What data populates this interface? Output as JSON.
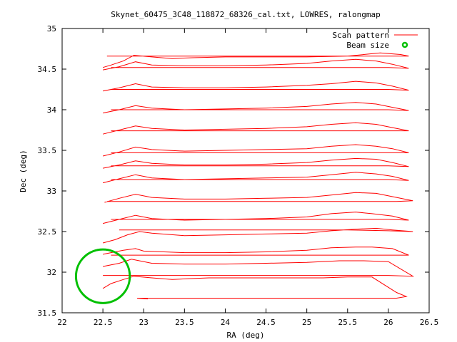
{
  "chart_data": {
    "type": "line",
    "title": "Skynet_60475_3C48_118872_68326_cal.txt, LOWRES, ralongmap",
    "xlabel": "RA (deg)",
    "ylabel": "Dec (deg)",
    "xlim": [
      22,
      26.5
    ],
    "ylim": [
      31.5,
      35
    ],
    "xticks": [
      22,
      22.5,
      23,
      23.5,
      24,
      24.5,
      25,
      25.5,
      26,
      26.5
    ],
    "yticks": [
      31.5,
      32,
      32.5,
      33,
      33.5,
      34,
      34.5,
      35
    ],
    "xtick_labels": [
      "22",
      "22.5",
      "23",
      "23.5",
      "24",
      "24.5",
      "25",
      "25.5",
      "26",
      "26.5"
    ],
    "ytick_labels": [
      "31.5",
      "32",
      "32.5",
      "33",
      "33.5",
      "34",
      "34.5",
      "35"
    ],
    "grid": false,
    "legend_position": "top-right",
    "legend": [
      {
        "label": "Scan pattern",
        "color": "#ff0000",
        "marker": "line"
      },
      {
        "label": "Beam size",
        "color": "#00c000",
        "marker": "circle"
      }
    ],
    "series": [
      {
        "color": "#ff0000",
        "x": [
          22.92,
          23.05
        ],
        "y": [
          31.68,
          31.67
        ]
      },
      {
        "color": "#ff0000",
        "x": [
          22.5,
          22.6,
          22.75,
          22.88,
          23.1,
          23.35,
          23.55,
          23.8,
          24.2,
          24.8,
          25.2,
          25.5,
          25.8,
          26.1,
          26.22,
          26.1,
          25.6,
          25.0,
          24.0,
          23.0,
          22.92
        ],
        "y": [
          31.8,
          31.86,
          31.91,
          31.95,
          31.93,
          31.91,
          31.92,
          31.93,
          31.93,
          31.93,
          31.93,
          31.94,
          31.94,
          31.75,
          31.7,
          31.68,
          31.68,
          31.68,
          31.68,
          31.68,
          31.68
        ]
      },
      {
        "color": "#ff0000",
        "x": [
          22.5,
          22.7,
          22.85,
          23.1,
          23.5,
          24.0,
          24.5,
          25.0,
          25.4,
          25.7,
          26.0,
          26.3,
          26.0,
          25.5,
          25.0,
          24.5,
          24.0,
          23.5,
          23.0,
          22.7,
          22.5
        ],
        "y": [
          32.07,
          32.11,
          32.16,
          32.11,
          32.1,
          32.1,
          32.11,
          32.12,
          32.14,
          32.14,
          32.13,
          31.95,
          31.96,
          31.96,
          31.96,
          31.96,
          31.96,
          31.96,
          31.96,
          31.96,
          31.96
        ]
      },
      {
        "color": "#ff0000",
        "x": [
          22.5,
          22.6,
          22.75,
          22.9,
          23.0,
          23.5,
          24.0,
          24.5,
          25.0,
          25.3,
          25.6,
          25.8,
          26.05,
          26.25,
          26.0,
          25.5,
          25.0,
          24.5,
          24.0,
          23.5,
          23.0,
          22.6
        ],
        "y": [
          32.22,
          32.24,
          32.27,
          32.29,
          32.26,
          32.24,
          32.24,
          32.25,
          32.27,
          32.3,
          32.31,
          32.31,
          32.29,
          32.21,
          32.21,
          32.21,
          32.21,
          32.21,
          32.21,
          32.21,
          32.21,
          32.21
        ]
      },
      {
        "color": "#ff0000",
        "x": [
          22.5,
          22.65,
          22.8,
          22.95,
          23.1,
          23.5,
          24.0,
          24.5,
          25.0,
          25.3,
          25.6,
          25.85,
          26.05,
          26.3,
          26.0,
          25.5,
          25.0,
          24.5,
          24.0,
          23.5,
          23.0,
          22.7
        ],
        "y": [
          32.36,
          32.4,
          32.46,
          32.5,
          32.48,
          32.45,
          32.46,
          32.47,
          32.48,
          32.51,
          32.53,
          32.54,
          32.52,
          32.5,
          32.51,
          32.52,
          32.52,
          32.52,
          32.52,
          32.52,
          32.52,
          32.52
        ]
      },
      {
        "color": "#ff0000",
        "x": [
          22.5,
          22.7,
          22.9,
          23.1,
          23.5,
          24.0,
          24.5,
          25.0,
          25.3,
          25.6,
          25.8,
          26.05,
          26.25,
          26.0,
          25.5,
          25.0,
          24.5,
          24.0,
          23.5,
          23.0,
          22.6
        ],
        "y": [
          32.6,
          32.65,
          32.7,
          32.66,
          32.64,
          32.65,
          32.66,
          32.68,
          32.72,
          32.74,
          32.72,
          32.69,
          32.64,
          32.65,
          32.65,
          32.65,
          32.65,
          32.65,
          32.65,
          32.65,
          32.65
        ]
      },
      {
        "color": "#ff0000",
        "x": [
          22.52,
          22.7,
          22.9,
          23.1,
          23.5,
          24.0,
          24.5,
          25.0,
          25.3,
          25.6,
          25.85,
          26.1,
          26.3,
          26.1,
          25.5,
          25.0,
          24.5,
          24.0,
          23.5,
          23.0,
          22.55
        ],
        "y": [
          32.86,
          32.91,
          32.96,
          32.92,
          32.9,
          32.9,
          32.91,
          32.92,
          32.95,
          32.98,
          32.97,
          32.92,
          32.88,
          32.87,
          32.87,
          32.87,
          32.87,
          32.87,
          32.87,
          32.87,
          32.87
        ]
      },
      {
        "color": "#ff0000",
        "x": [
          22.5,
          22.7,
          22.9,
          23.1,
          23.5,
          24.0,
          24.5,
          25.0,
          25.3,
          25.6,
          25.85,
          26.05,
          26.25,
          26.0,
          25.5,
          25.0,
          24.5,
          24.0,
          23.5,
          23.0,
          22.6
        ],
        "y": [
          33.1,
          33.15,
          33.2,
          33.16,
          33.14,
          33.15,
          33.16,
          33.17,
          33.2,
          33.23,
          33.21,
          33.18,
          33.13,
          33.14,
          33.14,
          33.14,
          33.14,
          33.14,
          33.14,
          33.14,
          33.14
        ]
      },
      {
        "color": "#ff0000",
        "x": [
          22.5,
          22.7,
          22.9,
          23.1,
          23.5,
          24.0,
          24.5,
          25.0,
          25.3,
          25.6,
          25.85,
          26.05,
          26.25,
          26.0,
          25.5,
          25.0,
          24.5,
          24.0,
          23.5,
          23.0,
          22.6
        ],
        "y": [
          33.28,
          33.32,
          33.37,
          33.34,
          33.32,
          33.32,
          33.33,
          33.35,
          33.38,
          33.4,
          33.39,
          33.35,
          33.3,
          33.31,
          33.31,
          33.31,
          33.31,
          33.31,
          33.31,
          33.31,
          33.31
        ]
      },
      {
        "color": "#ff0000",
        "x": [
          22.5,
          22.7,
          22.9,
          23.1,
          23.5,
          24.0,
          24.5,
          25.0,
          25.3,
          25.6,
          25.85,
          26.05,
          26.25,
          26.0,
          25.5,
          25.0,
          24.5,
          24.0,
          23.5,
          23.0,
          22.6
        ],
        "y": [
          33.43,
          33.48,
          33.54,
          33.51,
          33.49,
          33.5,
          33.51,
          33.52,
          33.55,
          33.57,
          33.55,
          33.52,
          33.47,
          33.47,
          33.47,
          33.47,
          33.47,
          33.47,
          33.47,
          33.47,
          33.47
        ]
      },
      {
        "color": "#ff0000",
        "x": [
          22.5,
          22.7,
          22.9,
          23.1,
          23.5,
          24.0,
          24.5,
          25.0,
          25.3,
          25.6,
          25.85,
          26.05,
          26.25,
          26.0,
          25.5,
          25.0,
          24.5,
          24.0,
          23.5,
          23.0,
          22.6
        ],
        "y": [
          33.7,
          33.75,
          33.8,
          33.77,
          33.75,
          33.76,
          33.77,
          33.79,
          33.82,
          33.84,
          33.82,
          33.78,
          33.74,
          33.74,
          33.74,
          33.74,
          33.74,
          33.74,
          33.74,
          33.74,
          33.74
        ]
      },
      {
        "color": "#ff0000",
        "x": [
          22.5,
          22.7,
          22.9,
          23.1,
          23.5,
          24.0,
          24.5,
          25.0,
          25.3,
          25.6,
          25.85,
          26.05,
          26.25,
          26.0,
          25.5,
          25.0,
          24.5,
          24.0,
          23.5,
          23.0,
          22.6
        ],
        "y": [
          33.96,
          34.0,
          34.05,
          34.02,
          34.0,
          34.01,
          34.02,
          34.04,
          34.07,
          34.09,
          34.07,
          34.03,
          33.99,
          34.0,
          34.0,
          34.0,
          34.0,
          34.0,
          34.0,
          34.0,
          34.0
        ]
      },
      {
        "color": "#ff0000",
        "x": [
          22.5,
          22.7,
          22.9,
          23.1,
          23.5,
          24.0,
          24.5,
          25.0,
          25.3,
          25.6,
          25.85,
          26.05,
          26.25,
          26.0,
          25.5,
          25.0,
          24.5,
          24.0,
          23.5,
          23.0,
          22.6
        ],
        "y": [
          34.23,
          34.27,
          34.32,
          34.28,
          34.27,
          34.27,
          34.28,
          34.3,
          34.32,
          34.35,
          34.33,
          34.29,
          34.24,
          34.25,
          34.25,
          34.25,
          34.25,
          34.25,
          34.25,
          34.25,
          34.25
        ]
      },
      {
        "color": "#ff0000",
        "x": [
          22.5,
          22.7,
          22.9,
          23.1,
          23.5,
          24.0,
          24.5,
          25.0,
          25.3,
          25.6,
          25.85,
          26.05,
          26.25,
          26.0,
          25.5,
          25.0,
          24.5,
          24.0,
          23.5,
          23.0,
          22.6
        ],
        "y": [
          34.49,
          34.53,
          34.59,
          34.55,
          34.54,
          34.54,
          34.55,
          34.57,
          34.6,
          34.62,
          34.6,
          34.56,
          34.51,
          34.52,
          34.52,
          34.52,
          34.52,
          34.52,
          34.52,
          34.52,
          34.52
        ]
      },
      {
        "color": "#ff0000",
        "x": [
          22.5,
          22.6,
          22.75,
          22.88,
          23.1,
          23.35,
          23.6,
          24.0,
          24.5,
          25.0,
          25.5,
          26.0,
          26.25,
          26.15,
          25.9,
          25.5,
          25.0,
          24.0,
          23.0,
          22.55
        ],
        "y": [
          34.52,
          34.55,
          34.6,
          34.67,
          34.65,
          34.63,
          34.64,
          34.65,
          34.65,
          34.65,
          34.66,
          34.66,
          34.66,
          34.68,
          34.7,
          34.66,
          34.66,
          34.66,
          34.66,
          34.66
        ]
      }
    ],
    "beam": {
      "ra": 22.5,
      "dec": 31.95,
      "radius_deg": 0.33,
      "color": "#00c000"
    }
  }
}
